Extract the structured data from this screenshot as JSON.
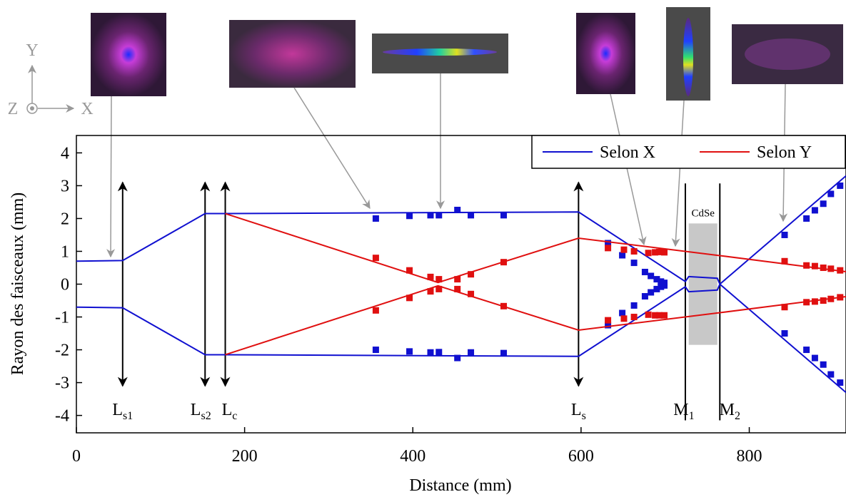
{
  "chart_data": {
    "type": "line",
    "xlabel": "Distance (mm)",
    "ylabel": "Rayon des faisceaux (mm)",
    "xlim": [
      0,
      915
    ],
    "ylim": [
      -4.53,
      4.53
    ],
    "xticks": [
      0,
      200,
      400,
      600,
      800
    ],
    "yticks": [
      -4,
      -3,
      -2,
      -1,
      0,
      1,
      2,
      3,
      4
    ],
    "legend": "upper right",
    "series": [
      {
        "name": "Selon X",
        "color": "#1010d0",
        "branches": [
          {
            "x": [
              0,
              55,
              153,
              177,
              597,
              724,
              728,
              762,
              765,
              915
            ],
            "values": [
              0.7,
              0.72,
              2.15,
              2.15,
              2.2,
              0.08,
              0.23,
              0.18,
              0,
              3.3
            ]
          },
          {
            "x": [
              0,
              55,
              153,
              177,
              597,
              724,
              728,
              762,
              765,
              915
            ],
            "values": [
              -0.7,
              -0.72,
              -2.15,
              -2.15,
              -2.2,
              -0.08,
              -0.23,
              -0.18,
              0,
              -3.3
            ]
          }
        ],
        "points": {
          "x": [
            356,
            396,
            421,
            431,
            453,
            469,
            508,
            356,
            396,
            421,
            431,
            453,
            469,
            508,
            632,
            649,
            663,
            676,
            683,
            690,
            695,
            699,
            632,
            649,
            663,
            676,
            683,
            690,
            695,
            699,
            842,
            868,
            878,
            888,
            897,
            908,
            842,
            868,
            878,
            888,
            897,
            908
          ],
          "values": [
            2.0,
            2.08,
            2.1,
            2.1,
            2.26,
            2.1,
            2.1,
            -2.0,
            -2.05,
            -2.08,
            -2.07,
            -2.25,
            -2.08,
            -2.1,
            1.25,
            0.88,
            0.65,
            0.37,
            0.25,
            0.15,
            0.08,
            0.04,
            -1.25,
            -0.88,
            -0.65,
            -0.37,
            -0.25,
            -0.15,
            -0.08,
            -0.04,
            1.5,
            2.0,
            2.25,
            2.45,
            2.75,
            3.0,
            -1.5,
            -2.0,
            -2.25,
            -2.45,
            -2.75,
            -3.0
          ]
        }
      },
      {
        "name": "Selon Y",
        "color": "#e01010",
        "branches": [
          {
            "x": [
              177,
              430,
              597,
              765,
              915
            ],
            "values": [
              2.15,
              0.05,
              1.4,
              0.87,
              0.38
            ]
          },
          {
            "x": [
              177,
              430,
              597,
              765,
              915
            ],
            "values": [
              -2.15,
              -0.05,
              -1.4,
              -0.87,
              -0.38
            ]
          }
        ],
        "points": {
          "x": [
            356,
            396,
            421,
            431,
            453,
            469,
            508,
            356,
            396,
            421,
            431,
            453,
            469,
            508,
            632,
            651,
            663,
            680,
            688,
            693,
            699,
            632,
            651,
            663,
            680,
            688,
            693,
            699,
            842,
            868,
            878,
            888,
            897,
            908,
            842,
            868,
            878,
            888,
            897,
            908
          ],
          "values": [
            0.8,
            0.42,
            0.22,
            0.15,
            0.15,
            0.3,
            0.67,
            -0.8,
            -0.42,
            -0.22,
            -0.15,
            -0.15,
            -0.3,
            -0.67,
            1.1,
            1.05,
            1.0,
            0.95,
            0.97,
            0.98,
            0.97,
            -1.1,
            -1.05,
            -1.0,
            -0.93,
            -0.95,
            -0.95,
            -0.95,
            0.7,
            0.57,
            0.55,
            0.5,
            0.47,
            0.42,
            -0.7,
            -0.55,
            -0.53,
            -0.5,
            -0.45,
            -0.4
          ]
        }
      }
    ],
    "lenses": [
      {
        "x": 55,
        "label": "L",
        "sub": "s1"
      },
      {
        "x": 153,
        "label": "L",
        "sub": "s2"
      },
      {
        "x": 177,
        "label": "L",
        "sub": "c"
      },
      {
        "x": 597,
        "label": "L",
        "sub": "s"
      }
    ],
    "lens_extent": [
      -3.1,
      3.1
    ],
    "mirrors": [
      {
        "x": 724,
        "label": "M",
        "sub": "1"
      },
      {
        "x": 765,
        "label": "M",
        "sub": "2"
      }
    ],
    "mirror_extent": [
      -4.15,
      3.07
    ],
    "crystal": {
      "label": "CdSe",
      "x": [
        728,
        762
      ],
      "y": [
        -1.85,
        1.85
      ]
    },
    "orientation": {
      "y": "Y",
      "x": "X",
      "z": "Z"
    }
  }
}
